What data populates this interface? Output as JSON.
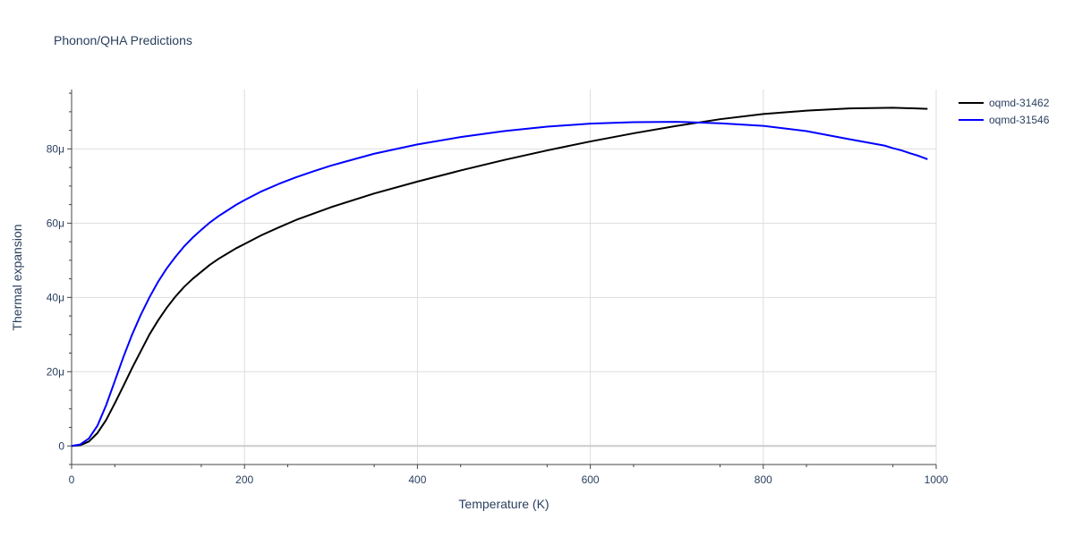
{
  "chart_data": {
    "type": "line",
    "title": "Phonon/QHA Predictions",
    "xlabel": "Temperature (K)",
    "ylabel": "Thermal expansion",
    "xlim": [
      0,
      1000
    ],
    "ylim": [
      -5,
      96
    ],
    "x_ticks": [
      0,
      200,
      400,
      600,
      800,
      1000
    ],
    "x_tick_labels": [
      "0",
      "200",
      "400",
      "600",
      "800",
      "1000"
    ],
    "y_ticks": [
      0,
      20,
      40,
      60,
      80
    ],
    "y_tick_labels": [
      "0",
      "20μ",
      "40μ",
      "60μ",
      "80μ"
    ],
    "y_unit_scale": "1e-6",
    "grid": true,
    "legend_position": "top-right",
    "series": [
      {
        "name": "oqmd-31462",
        "color": "#000000",
        "x": [
          0,
          10,
          20,
          30,
          40,
          50,
          60,
          70,
          80,
          90,
          100,
          110,
          120,
          130,
          140,
          150,
          160,
          170,
          180,
          190,
          200,
          220,
          240,
          260,
          280,
          300,
          350,
          400,
          450,
          500,
          550,
          600,
          650,
          700,
          750,
          800,
          850,
          900,
          950,
          990
        ],
        "values": [
          0,
          0.2,
          1.2,
          3.5,
          7,
          11.5,
          16.2,
          21,
          25.5,
          30,
          33.8,
          37.2,
          40.2,
          42.8,
          45,
          46.9,
          48.8,
          50.4,
          51.8,
          53.2,
          54.4,
          56.8,
          58.9,
          60.9,
          62.6,
          64.3,
          68,
          71.2,
          74.2,
          77,
          79.6,
          82,
          84.2,
          86.2,
          88,
          89.4,
          90.3,
          90.9,
          91.1,
          90.8
        ]
      },
      {
        "name": "oqmd-31546",
        "color": "#0000ff",
        "x": [
          0,
          10,
          20,
          30,
          40,
          50,
          60,
          70,
          80,
          90,
          100,
          110,
          120,
          130,
          140,
          150,
          160,
          170,
          180,
          190,
          200,
          220,
          240,
          260,
          280,
          300,
          350,
          400,
          450,
          500,
          550,
          600,
          650,
          700,
          750,
          800,
          850,
          900,
          940,
          950,
          960,
          970,
          980,
          990
        ],
        "values": [
          0,
          0.4,
          2,
          5.5,
          11,
          17.5,
          24,
          30,
          35.3,
          40,
          44.2,
          47.8,
          50.9,
          53.7,
          56.1,
          58.2,
          60.2,
          61.9,
          63.4,
          64.9,
          66.2,
          68.6,
          70.6,
          72.4,
          74,
          75.5,
          78.7,
          81.2,
          83.2,
          84.8,
          86,
          86.8,
          87.2,
          87.3,
          86.9,
          86.2,
          84.8,
          82.6,
          80.9,
          80.2,
          79.6,
          78.8,
          78.1,
          77.2
        ]
      }
    ]
  }
}
